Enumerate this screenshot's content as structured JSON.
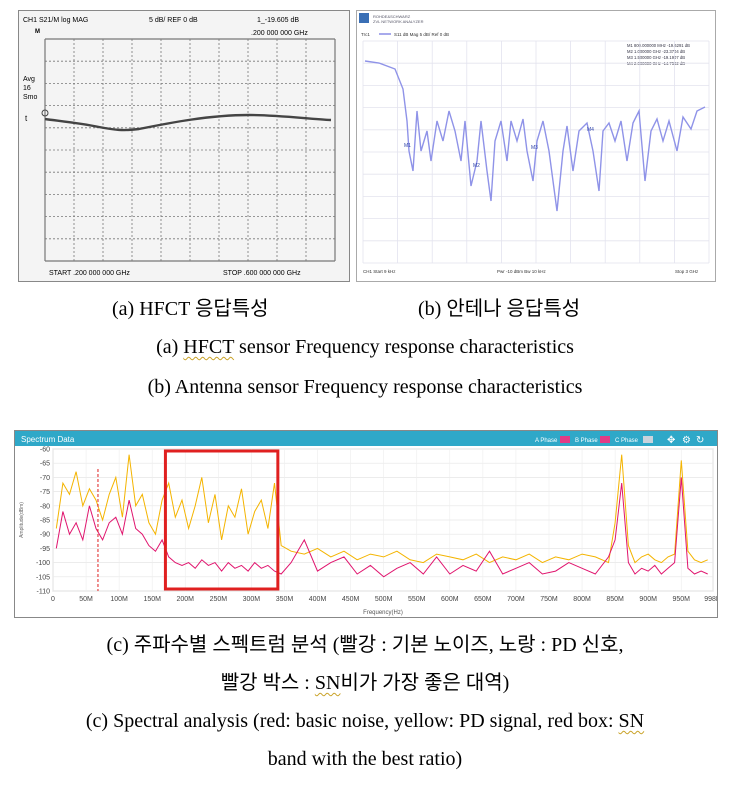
{
  "panel_a": {
    "header_left": "CH1 S21/M log MAG",
    "header_mid": "5 dB/ REF 0 dB",
    "header_right": "1_-19.605 dB",
    "marker_freq": ".200 000 000 GHz",
    "side_labels": [
      "Avg",
      "16",
      "Smo"
    ],
    "start_label": "START .200 000 000 GHz",
    "stop_label": "STOP .600 000 000 GHz"
  },
  "panel_b": {
    "brand_line1": "ROHDE&SCHWARZ",
    "brand_line2": "ZVL NETWORK ANALYZER",
    "trace_label": "Trc1",
    "trace_desc": "S11 dB Mag 5 dB/ Ref 0 dB",
    "markers": [
      {
        "id": "M1",
        "freq": "800.000000 MHz",
        "level": "-19.6291 dB"
      },
      {
        "id": "M2",
        "freq": "1.000000 GHz",
        "level": "-23.3704 dB"
      },
      {
        "id": "M3",
        "freq": "1.500000 GHz",
        "level": "-19.1907 dB"
      },
      {
        "id": "M4",
        "freq": "2.000000 GHz",
        "level": "-14.7582 dB"
      }
    ],
    "footer_left": "CH1 Start 9 kHz",
    "footer_mid": "Pwr -10 dBm Bw 10 kHz",
    "footer_right": "Stop 3 GHz"
  },
  "panel_c": {
    "title": "Spectrum Data",
    "legend": [
      {
        "label": "A Phase",
        "color": "#e23a86"
      },
      {
        "label": "B Phase",
        "color": "#e23a86"
      },
      {
        "label": "C Phase",
        "color": "#c9d3dc"
      }
    ],
    "icon_names": [
      "move-icon",
      "settings-icon",
      "refresh-icon"
    ],
    "colors": {
      "header": "#2fa8c8",
      "noise": "#e0156e",
      "pd": "#f4b400",
      "box": "#e02020"
    }
  },
  "chart_data": {
    "type": "line",
    "xlabel": "Frequency(Hz)",
    "ylabel": "Amplitude(dBm)",
    "ylim": [
      -110,
      -60
    ],
    "y_ticks": [
      "-60",
      "-65",
      "-70",
      "-75",
      "-80",
      "-85",
      "-90",
      "-95",
      "-100",
      "-105",
      "-110"
    ],
    "x_ticks": [
      "0",
      "50M",
      "100M",
      "150M",
      "200M",
      "250M",
      "300M",
      "350M",
      "400M",
      "450M",
      "500M",
      "550M",
      "600M",
      "650M",
      "700M",
      "750M",
      "800M",
      "850M",
      "900M",
      "950M",
      "998M"
    ],
    "xlim": [
      0,
      998
    ],
    "vline_mhz": 68,
    "box_mhz": [
      170,
      340
    ],
    "series": [
      {
        "key": "pd",
        "x": [
          5,
          15,
          25,
          35,
          45,
          55,
          65,
          75,
          85,
          95,
          105,
          115,
          125,
          135,
          145,
          155,
          165,
          175,
          185,
          195,
          205,
          215,
          225,
          235,
          245,
          255,
          265,
          275,
          285,
          295,
          305,
          315,
          325,
          335,
          345,
          360,
          380,
          400,
          420,
          440,
          460,
          480,
          500,
          520,
          540,
          560,
          580,
          600,
          620,
          640,
          660,
          680,
          700,
          720,
          740,
          760,
          780,
          800,
          820,
          840,
          850,
          860,
          870,
          880,
          890,
          900,
          910,
          920,
          930,
          940,
          950,
          960,
          970,
          980,
          990
        ],
        "y": [
          -88,
          -72,
          -76,
          -68,
          -80,
          -74,
          -78,
          -85,
          -76,
          -70,
          -84,
          -62,
          -80,
          -76,
          -86,
          -90,
          -78,
          -72,
          -84,
          -78,
          -88,
          -80,
          -70,
          -86,
          -76,
          -92,
          -80,
          -84,
          -74,
          -90,
          -82,
          -78,
          -88,
          -72,
          -94,
          -96,
          -97,
          -95,
          -98,
          -96,
          -99,
          -97,
          -98,
          -96,
          -99,
          -100,
          -97,
          -98,
          -99,
          -97,
          -100,
          -98,
          -99,
          -97,
          -100,
          -98,
          -99,
          -97,
          -98,
          -100,
          -86,
          -62,
          -94,
          -100,
          -98,
          -97,
          -99,
          -100,
          -98,
          -97,
          -64,
          -96,
          -99,
          -100,
          -99
        ]
      },
      {
        "key": "noise",
        "x": [
          5,
          15,
          25,
          35,
          45,
          55,
          65,
          75,
          85,
          95,
          105,
          115,
          125,
          135,
          145,
          155,
          165,
          175,
          185,
          195,
          205,
          215,
          225,
          235,
          245,
          255,
          265,
          275,
          285,
          295,
          305,
          315,
          325,
          335,
          345,
          360,
          380,
          400,
          420,
          440,
          460,
          480,
          500,
          520,
          540,
          560,
          580,
          600,
          620,
          640,
          660,
          680,
          700,
          720,
          740,
          760,
          780,
          800,
          820,
          840,
          850,
          860,
          870,
          880,
          890,
          900,
          910,
          920,
          930,
          940,
          950,
          960,
          970,
          980,
          990
        ],
        "y": [
          -95,
          -82,
          -90,
          -86,
          -92,
          -80,
          -88,
          -92,
          -86,
          -84,
          -90,
          -78,
          -88,
          -90,
          -94,
          -96,
          -92,
          -98,
          -100,
          -101,
          -100,
          -102,
          -99,
          -101,
          -100,
          -103,
          -100,
          -102,
          -101,
          -103,
          -100,
          -102,
          -101,
          -103,
          -104,
          -100,
          -92,
          -103,
          -100,
          -98,
          -104,
          -101,
          -105,
          -102,
          -100,
          -104,
          -98,
          -104,
          -101,
          -103,
          -96,
          -104,
          -102,
          -100,
          -104,
          -103,
          -100,
          -102,
          -104,
          -98,
          -92,
          -72,
          -100,
          -104,
          -102,
          -103,
          -101,
          -104,
          -102,
          -100,
          -70,
          -102,
          -104,
          -103,
          -104
        ]
      }
    ]
  },
  "captions": {
    "a_kr": "(a) HFCT 응답특성",
    "b_kr": "(b) 안테나 응답특성",
    "a_en": "(a) HFCT sensor Frequency response characteristics",
    "b_en": "(b) Antenna sensor Frequency response characteristics",
    "c_kr_1": "(c) 주파수별 스펙트럼 분석 (빨강 : 기본 노이즈, 노랑 : PD 신호,",
    "c_kr_2": "빨강 박스 : SN비가 가장 좋은 대역)",
    "c_en_1": "(c) Spectral analysis (red: basic noise, yellow: PD signal, red box: SN",
    "c_en_2": "band with the best ratio)"
  }
}
